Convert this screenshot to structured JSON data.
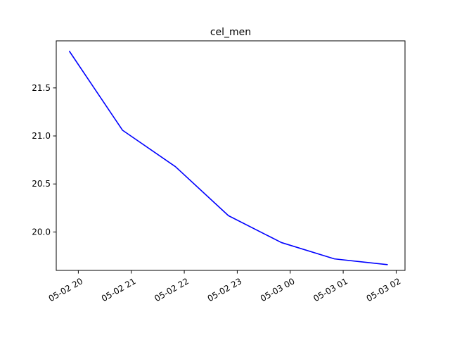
{
  "chart_data": {
    "type": "line",
    "title": "cel_men",
    "xlabel": "",
    "ylabel": "",
    "x": [
      "2024-05-02T19:50",
      "2024-05-02T20:50",
      "2024-05-02T21:50",
      "2024-05-02T22:50",
      "2024-05-02T23:50",
      "2024-05-03T00:50",
      "2024-05-03T01:50"
    ],
    "x_ticks": [
      "05-02 20",
      "05-02 21",
      "05-02 22",
      "05-02 23",
      "05-03 00",
      "05-03 01",
      "05-03 02"
    ],
    "x_tick_values": [
      "2024-05-02T20:00",
      "2024-05-02T21:00",
      "2024-05-02T22:00",
      "2024-05-02T23:00",
      "2024-05-03T00:00",
      "2024-05-03T01:00",
      "2024-05-03T02:00"
    ],
    "xlim": [
      "2024-05-02T19:35",
      "2024-05-03T02:10"
    ],
    "y_ticks": [
      "20.0",
      "20.5",
      "21.0",
      "21.5"
    ],
    "y_tick_values": [
      20.0,
      20.5,
      21.0,
      21.5
    ],
    "ylim": [
      19.6,
      21.99
    ],
    "series": [
      {
        "values": [
          21.88,
          21.06,
          20.68,
          20.17,
          19.89,
          19.72,
          19.66
        ],
        "color": "#0000ff"
      }
    ],
    "grid": false,
    "legend": "none"
  }
}
